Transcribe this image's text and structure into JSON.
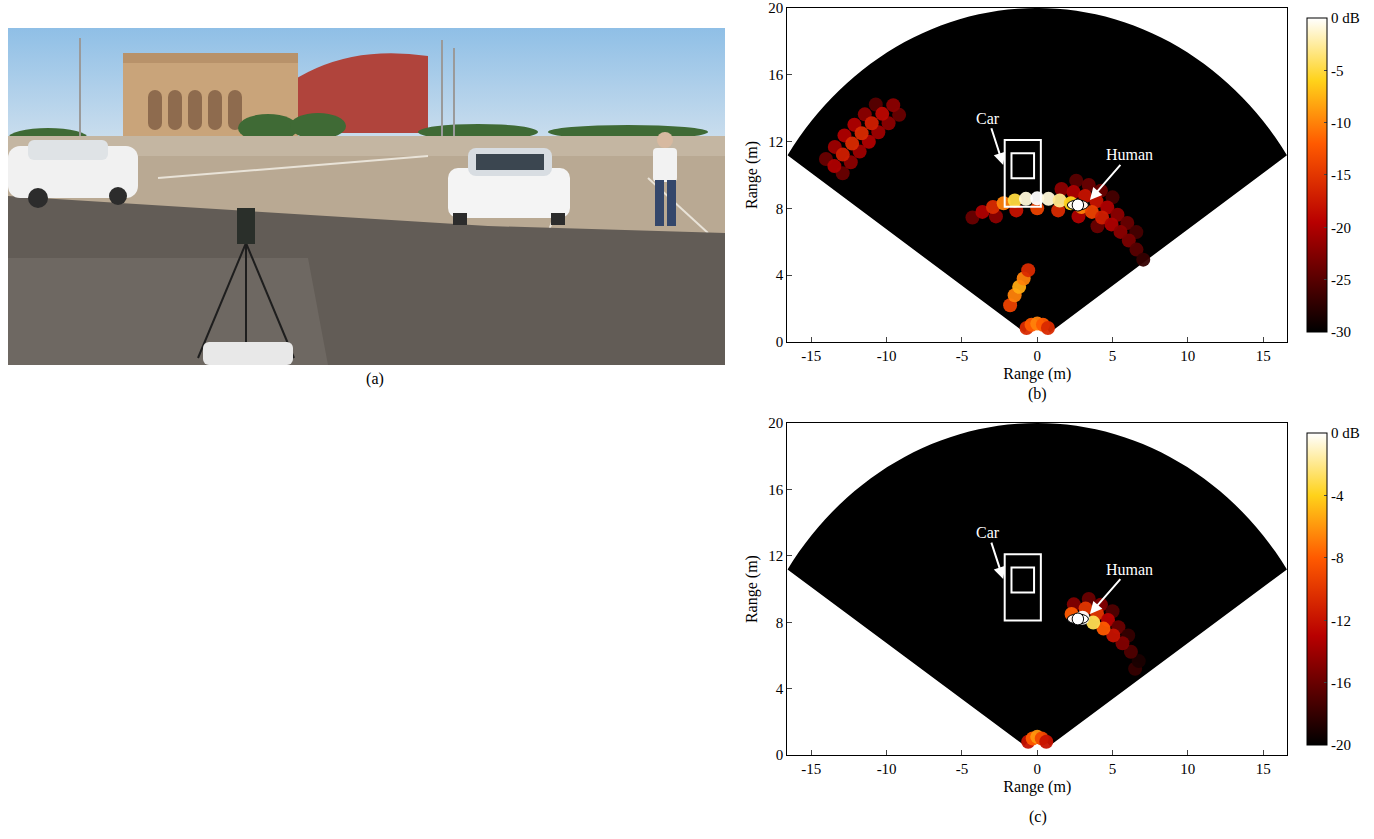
{
  "photo": {
    "label": "(a)"
  },
  "chart_data": [
    {
      "type": "heatmap",
      "panel": "(b)",
      "xlabel": "Range (m)",
      "ylabel": "Range (m)",
      "xlim": [
        -16.6,
        16.6
      ],
      "ylim": [
        0,
        20
      ],
      "xticks": [
        -15,
        -10,
        -5,
        0,
        5,
        10,
        15
      ],
      "yticks": [
        0,
        4,
        8,
        12,
        16,
        20
      ],
      "sector": {
        "range": [
          1,
          20
        ],
        "angle": [
          -56,
          56
        ]
      },
      "colorbar": {
        "range": [
          -30,
          0
        ],
        "ticks": [
          {
            "value": 0,
            "label": "0 dB"
          },
          -5,
          -10,
          -15,
          -20,
          -25,
          -30
        ]
      },
      "cells": [
        [
          -12.92,
          10.1,
          -24
        ],
        [
          -12.38,
          10.76,
          -22
        ],
        [
          -11.79,
          11.4,
          -21
        ],
        [
          -11.18,
          11.99,
          -20
        ],
        [
          -10.55,
          12.56,
          -21
        ],
        [
          -9.87,
          13.1,
          -22
        ],
        [
          -9.17,
          13.6,
          -24
        ],
        [
          -14.03,
          10.96,
          -24
        ],
        [
          -13.44,
          11.68,
          -21
        ],
        [
          -12.8,
          12.37,
          -20
        ],
        [
          -12.14,
          13.01,
          -20
        ],
        [
          -11.45,
          13.63,
          -22
        ],
        [
          -10.72,
          14.22,
          -25
        ],
        [
          -13.47,
          10.53,
          -20
        ],
        [
          -12.91,
          11.22,
          -17
        ],
        [
          -12.29,
          11.88,
          -16
        ],
        [
          -11.66,
          12.5,
          -16
        ],
        [
          -10.99,
          13.1,
          -17
        ],
        [
          -10.29,
          13.66,
          -19
        ],
        [
          -9.56,
          14.18,
          -22
        ],
        [
          2.59,
          9.66,
          -25
        ],
        [
          3.42,
          9.4,
          -24
        ],
        [
          4.23,
          9.06,
          -24
        ],
        [
          5.0,
          8.66,
          -26
        ],
        [
          1.61,
          9.16,
          -22
        ],
        [
          2.41,
          8.98,
          -20
        ],
        [
          3.18,
          8.74,
          -18
        ],
        [
          3.93,
          8.43,
          -18
        ],
        [
          4.65,
          8.05,
          -20
        ],
        [
          5.33,
          7.62,
          -22
        ],
        [
          5.98,
          7.12,
          -24
        ],
        [
          6.58,
          6.58,
          -26
        ],
        [
          -2.74,
          7.52,
          -22
        ],
        [
          -1.39,
          7.88,
          -18
        ],
        [
          0,
          8.0,
          -14
        ],
        [
          1.39,
          7.88,
          -16
        ],
        [
          2.74,
          7.52,
          -20
        ],
        [
          4.0,
          6.93,
          -24
        ],
        [
          -1.8,
          2.2,
          -14
        ],
        [
          -1.5,
          2.8,
          -10
        ],
        [
          -1.2,
          3.3,
          -8
        ],
        [
          -0.9,
          3.8,
          -10
        ],
        [
          -0.6,
          4.3,
          -16
        ],
        [
          -0.71,
          0.84,
          -16
        ],
        [
          -0.38,
          1.03,
          -12
        ],
        [
          0,
          1.1,
          -10
        ],
        [
          0.38,
          1.03,
          -12
        ],
        [
          0.71,
          0.84,
          -16
        ],
        [
          -4.3,
          7.45,
          -24
        ],
        [
          -3.64,
          7.79,
          -20
        ],
        [
          -2.94,
          8.08,
          -16
        ],
        [
          -2.23,
          8.31,
          -10
        ],
        [
          -1.49,
          8.47,
          -5
        ],
        [
          -0.75,
          8.57,
          -1
        ],
        [
          0,
          8.6,
          0
        ],
        [
          0.75,
          8.57,
          -1
        ],
        [
          1.49,
          8.47,
          -3
        ],
        [
          2.23,
          8.31,
          -6
        ],
        [
          2.94,
          8.08,
          -10
        ],
        [
          3.63,
          7.79,
          -14
        ],
        [
          4.3,
          7.45,
          -17
        ],
        [
          4.93,
          7.04,
          -20
        ],
        [
          5.53,
          6.59,
          -22
        ],
        [
          6.08,
          6.08,
          -23
        ],
        [
          6.59,
          5.53,
          -25
        ],
        [
          7.04,
          4.93,
          -27
        ]
      ],
      "annotations": [
        {
          "text": "Car",
          "x": -0.96,
          "y": 10.1
        },
        {
          "text": "Human",
          "x": 2.7,
          "y": 8.2
        }
      ]
    },
    {
      "type": "heatmap",
      "panel": "(c)",
      "xlabel": "Range (m)",
      "ylabel": "Range (m)",
      "xlim": [
        -16.6,
        16.6
      ],
      "ylim": [
        0,
        20
      ],
      "xticks": [
        -15,
        -10,
        -5,
        0,
        5,
        10,
        15
      ],
      "yticks": [
        0,
        4,
        8,
        12,
        16,
        20
      ],
      "sector": {
        "range": [
          1,
          20
        ],
        "angle": [
          -56,
          56
        ]
      },
      "colorbar": {
        "range": [
          -20,
          0
        ],
        "ticks": [
          {
            "value": 0,
            "label": "0 dB"
          },
          -4,
          -8,
          -12,
          -16,
          -20
        ]
      },
      "cells": [
        [
          6.5,
          5.2,
          -18
        ],
        [
          3.42,
          9.4,
          -16
        ],
        [
          4.23,
          9.06,
          -15
        ],
        [
          5.0,
          8.66,
          -17
        ],
        [
          2.43,
          9.08,
          -15
        ],
        [
          3.21,
          8.83,
          -10
        ],
        [
          3.97,
          8.52,
          -10
        ],
        [
          4.7,
          8.14,
          -13
        ],
        [
          5.39,
          7.7,
          -16
        ],
        [
          6.04,
          7.2,
          -18
        ],
        [
          -0.6,
          0.8,
          -12
        ],
        [
          -0.3,
          1.0,
          -8
        ],
        [
          0,
          1.1,
          -6
        ],
        [
          0.3,
          1.0,
          -9
        ],
        [
          0.6,
          0.8,
          -12
        ],
        [
          6.74,
          5.66,
          -19
        ],
        [
          6.22,
          6.22,
          -17
        ],
        [
          5.66,
          6.74,
          -15
        ],
        [
          5.05,
          7.21,
          -12
        ],
        [
          4.4,
          7.62,
          -8
        ],
        [
          2.28,
          8.5,
          -8
        ],
        [
          3.72,
          7.98,
          -3
        ],
        [
          3.01,
          8.27,
          0
        ]
      ],
      "annotations": [
        {
          "text": "Car",
          "x": -0.96,
          "y": 10.1
        },
        {
          "text": "Human",
          "x": 2.7,
          "y": 8.2
        }
      ]
    }
  ]
}
